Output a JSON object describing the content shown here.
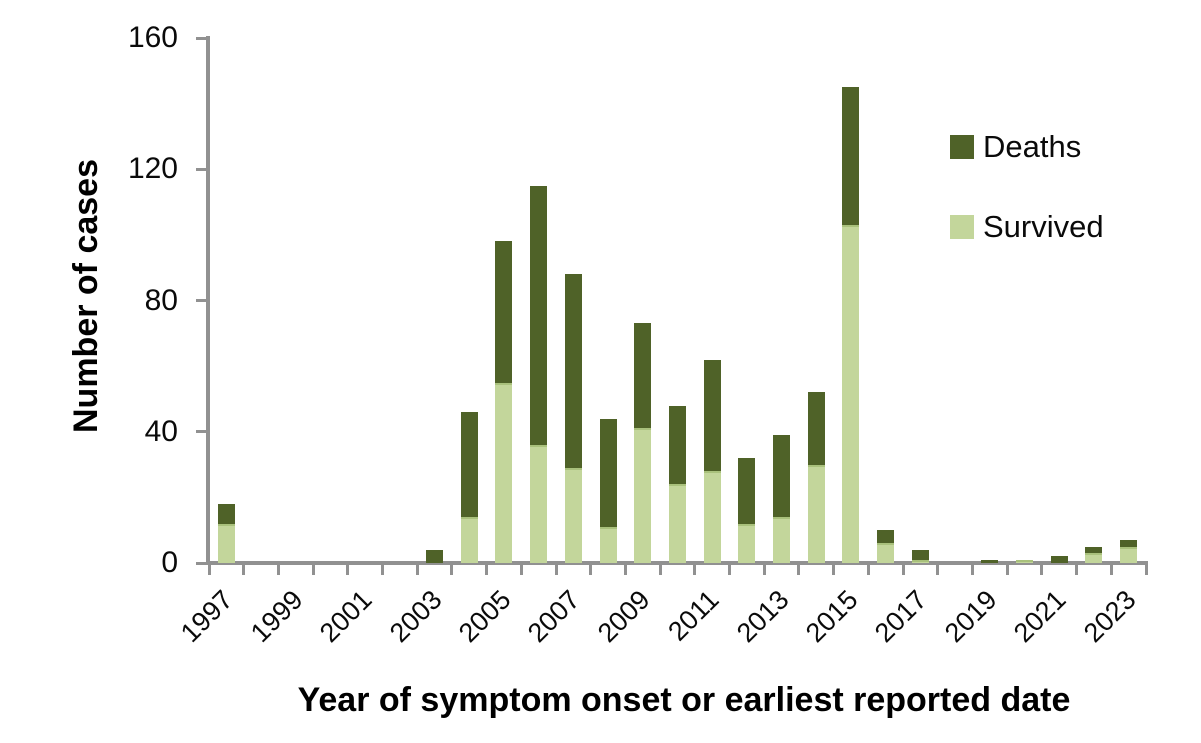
{
  "chart_data": {
    "type": "bar",
    "stacked": true,
    "title": "",
    "xlabel": "Year of symptom onset or earliest reported date",
    "ylabel": "Number of cases",
    "x": [
      1997,
      1998,
      1999,
      2000,
      2001,
      2002,
      2003,
      2004,
      2005,
      2006,
      2007,
      2008,
      2009,
      2010,
      2011,
      2012,
      2013,
      2014,
      2015,
      2016,
      2017,
      2018,
      2019,
      2020,
      2021,
      2022,
      2023
    ],
    "series": [
      {
        "name": "Deaths",
        "color": "#4f6228",
        "values": [
          6,
          0,
          0,
          0,
          0,
          0,
          4,
          32,
          43,
          79,
          59,
          33,
          32,
          24,
          34,
          20,
          25,
          22,
          42,
          4,
          3,
          0,
          1,
          0,
          2,
          2,
          2
        ]
      },
      {
        "name": "Survived",
        "color": "#c3d69b",
        "values": [
          12,
          0,
          0,
          0,
          0,
          0,
          0,
          14,
          55,
          36,
          29,
          11,
          41,
          24,
          28,
          12,
          14,
          30,
          103,
          6,
          1,
          0,
          0,
          1,
          0,
          3,
          5
        ]
      }
    ],
    "ylim": [
      0,
      160
    ],
    "yticks": [
      0,
      40,
      80,
      120,
      160
    ],
    "xtick_label_years": [
      1997,
      1999,
      2001,
      2003,
      2005,
      2007,
      2009,
      2011,
      2013,
      2015,
      2017,
      2019,
      2021,
      2023
    ],
    "grid": false,
    "legend_position": "upper-right"
  },
  "legend": {
    "items": [
      {
        "label": "Deaths",
        "color": "#4f6228"
      },
      {
        "label": "Survived",
        "color": "#c3d69b"
      }
    ]
  },
  "colors": {
    "deaths": "#4f6228",
    "survived": "#c3d69b",
    "survived_edge": "#a9c17c",
    "axis": "#919191",
    "text": "#0a0a0a"
  }
}
